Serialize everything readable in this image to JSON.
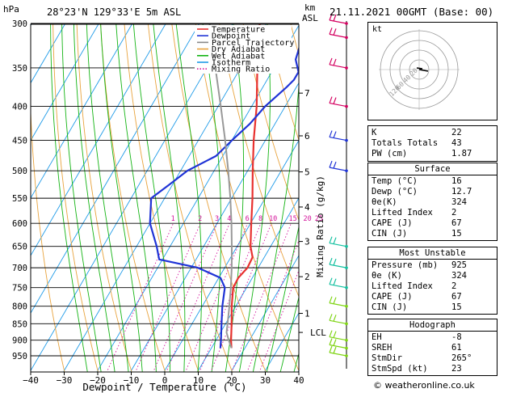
{
  "header": {
    "pressure_unit": "hPa",
    "location": "28°23'N 129°33'E 5m ASL",
    "km_label": "km",
    "asl_label": "ASL",
    "valid_time": "21.11.2021 00GMT (Base: 00)"
  },
  "legend": {
    "items": [
      {
        "label": "Temperature",
        "color": "#e8312f",
        "style": "solid"
      },
      {
        "label": "Dewpoint",
        "color": "#1f33d6",
        "style": "solid"
      },
      {
        "label": "Parcel Trajectory",
        "color": "#888888",
        "style": "solid"
      },
      {
        "label": "Dry Adiabat",
        "color": "#e8a33d",
        "style": "solid"
      },
      {
        "label": "Wet Adiabat",
        "color": "#14b414",
        "style": "solid"
      },
      {
        "label": "Isotherm",
        "color": "#1f9be8",
        "style": "solid"
      },
      {
        "label": "Mixing Ratio",
        "color": "#d4149c",
        "style": "dotted"
      }
    ]
  },
  "colors": {
    "temperature": "#e8312f",
    "dewpoint": "#1f33d6",
    "parcel": "#999999",
    "dry_adiabat": "#e8a33d",
    "wet_adiabat": "#14b414",
    "isotherm": "#1f9be8",
    "mixing_ratio": "#d4149c",
    "wind_high": "#d40060",
    "wind_mid": "#1f33d6",
    "wind_low": "#14c0a0",
    "wind_surface": "#7fd414"
  },
  "chart_data": {
    "type": "line",
    "title": "",
    "xlabel": "Dewpoint / Temperature (°C)",
    "ylabel": "",
    "right_axis_label": "Mixing Ratio (g/kg)",
    "xlim": [
      -40,
      40
    ],
    "ylim_hpa": [
      300,
      1000
    ],
    "x_ticks": [
      -40,
      -30,
      -20,
      -10,
      0,
      10,
      20,
      30,
      40
    ],
    "x_tick_labels": [
      "−40",
      "−30",
      "−20",
      "−10",
      "0",
      "10",
      "20",
      "30",
      "40"
    ],
    "pressure_ticks": [
      300,
      350,
      400,
      450,
      500,
      550,
      600,
      650,
      700,
      750,
      800,
      850,
      900,
      950
    ],
    "height_ticks": [
      {
        "km": "7",
        "p": 382
      },
      {
        "km": "6",
        "p": 443
      },
      {
        "km": "5",
        "p": 502
      },
      {
        "km": "4",
        "p": 567
      },
      {
        "km": "3",
        "p": 639
      },
      {
        "km": "2",
        "p": 722
      },
      {
        "km": "1",
        "p": 820
      }
    ],
    "lcl": {
      "label": "LCL",
      "p": 876
    },
    "mixing_ratio_labels": [
      "1",
      "2",
      "3",
      "4",
      "6",
      "8",
      "10",
      "15",
      "20",
      "25"
    ],
    "mixing_ratio_values": [
      1,
      2,
      3,
      4,
      6,
      8,
      10,
      15,
      20,
      25
    ],
    "series": [
      {
        "name": "Temperature",
        "p": [
          925,
          900,
          850,
          800,
          750,
          725,
          700,
          675,
          650,
          600,
          550,
          500,
          450,
          400,
          350,
          300
        ],
        "t": [
          16,
          14.5,
          11.8,
          8.8,
          6.0,
          5.8,
          6.8,
          6.5,
          4.0,
          0.2,
          -3.8,
          -8.5,
          -13.5,
          -18.5,
          -25.0,
          -32.0
        ]
      },
      {
        "name": "Dewpoint",
        "p": [
          925,
          900,
          850,
          800,
          750,
          725,
          700,
          680,
          650,
          600,
          550,
          525,
          500,
          475,
          450,
          425,
          400,
          375,
          365,
          355,
          340,
          300
        ],
        "t": [
          12.7,
          11.5,
          8.8,
          6.0,
          3.5,
          0.5,
          -8.0,
          -21.0,
          -24.0,
          -30.0,
          -34.0,
          -31.0,
          -28.0,
          -22.0,
          -20.0,
          -17.5,
          -16.0,
          -13.0,
          -12.0,
          -12.0,
          -15.0,
          -18.0
        ]
      },
      {
        "name": "Parcel Trajectory",
        "p": [
          925,
          900,
          876,
          850,
          800,
          750,
          700,
          650,
          600,
          550,
          500,
          450,
          400,
          350,
          300
        ],
        "t": [
          16,
          13.8,
          11.8,
          10.6,
          8.1,
          5.3,
          2.1,
          -1.6,
          -5.7,
          -10.4,
          -15.8,
          -22.0,
          -29.2,
          -37.5,
          -47.0
        ]
      }
    ],
    "winds": [
      {
        "p": 300,
        "group": "high"
      },
      {
        "p": 315,
        "group": "high"
      },
      {
        "p": 350,
        "group": "high"
      },
      {
        "p": 400,
        "group": "high"
      },
      {
        "p": 450,
        "group": "mid"
      },
      {
        "p": 500,
        "group": "mid"
      },
      {
        "p": 650,
        "group": "low"
      },
      {
        "p": 700,
        "group": "low"
      },
      {
        "p": 750,
        "group": "low"
      },
      {
        "p": 800,
        "group": "surface"
      },
      {
        "p": 850,
        "group": "surface"
      },
      {
        "p": 900,
        "group": "surface"
      },
      {
        "p": 925,
        "group": "surface"
      },
      {
        "p": 950,
        "group": "surface"
      }
    ]
  },
  "hodograph": {
    "unit_label": "kt",
    "ring_labels": [
      "20",
      "40",
      "60",
      "120"
    ]
  },
  "indices": {
    "rows": [
      {
        "label": "K",
        "value": "22"
      },
      {
        "label": "Totals Totals",
        "value": "43"
      },
      {
        "label": "PW (cm)",
        "value": "1.87"
      }
    ]
  },
  "surface": {
    "title": "Surface",
    "rows": [
      {
        "label": "Temp (°C)",
        "value": "16"
      },
      {
        "label": "Dewp (°C)",
        "value": "12.7"
      },
      {
        "label": "θe(K)",
        "value": "324"
      },
      {
        "label": "Lifted Index",
        "value": "2"
      },
      {
        "label": "CAPE (J)",
        "value": "67"
      },
      {
        "label": "CIN (J)",
        "value": "15"
      }
    ]
  },
  "most_unstable": {
    "title": "Most Unstable",
    "rows": [
      {
        "label": "Pressure (mb)",
        "value": "925"
      },
      {
        "label": "θe (K)",
        "value": "324"
      },
      {
        "label": "Lifted Index",
        "value": "2"
      },
      {
        "label": "CAPE (J)",
        "value": "67"
      },
      {
        "label": "CIN (J)",
        "value": "15"
      }
    ]
  },
  "hodograph_stats": {
    "title": "Hodograph",
    "rows": [
      {
        "label": "EH",
        "value": "-8"
      },
      {
        "label": "SREH",
        "value": "61"
      },
      {
        "label": "StmDir",
        "value": "265°"
      },
      {
        "label": "StmSpd (kt)",
        "value": "23"
      }
    ]
  },
  "copyright": "© weatheronline.co.uk"
}
